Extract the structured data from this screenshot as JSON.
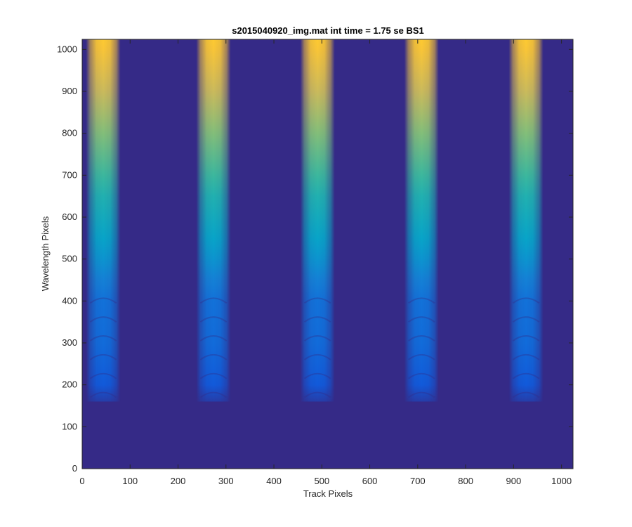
{
  "chart_data": {
    "type": "heatmap",
    "title": "s2015040920_img.mat int time = 1.75 se   BS1",
    "xlabel": "Track Pixels",
    "ylabel": "Wavelength Pixels",
    "xlim": [
      0,
      1024
    ],
    "ylim": [
      0,
      1024
    ],
    "xticks": [
      0,
      100,
      200,
      300,
      400,
      500,
      600,
      700,
      800,
      900,
      1000
    ],
    "yticks": [
      0,
      100,
      200,
      300,
      400,
      500,
      600,
      700,
      800,
      900,
      1000
    ],
    "grid": false,
    "colormap": "parula",
    "colors": {
      "background": "#352a87",
      "stops": [
        "#352a87",
        "#0f5cdd",
        "#1481d6",
        "#06a4ca",
        "#2eb7a4",
        "#87bf77",
        "#d1bb59",
        "#fec832",
        "#f9fb0e"
      ]
    },
    "bands": [
      {
        "track_start": 8,
        "track_end": 80,
        "row_start": 160,
        "row_end": 1024
      },
      {
        "track_start": 238,
        "track_end": 310,
        "row_start": 160,
        "row_end": 1024
      },
      {
        "track_start": 455,
        "track_end": 527,
        "row_start": 160,
        "row_end": 1024
      },
      {
        "track_start": 672,
        "track_end": 744,
        "row_start": 160,
        "row_end": 1024
      },
      {
        "track_start": 890,
        "track_end": 962,
        "row_start": 160,
        "row_end": 1024
      }
    ],
    "intensity_profile": {
      "rows": [
        160,
        200,
        300,
        400,
        450,
        500,
        550,
        600,
        650,
        700,
        750,
        800,
        850,
        900,
        950,
        1000,
        1024
      ],
      "values": [
        0.05,
        0.12,
        0.18,
        0.2,
        0.25,
        0.32,
        0.38,
        0.42,
        0.46,
        0.52,
        0.57,
        0.62,
        0.68,
        0.74,
        0.8,
        0.86,
        0.88
      ]
    }
  }
}
